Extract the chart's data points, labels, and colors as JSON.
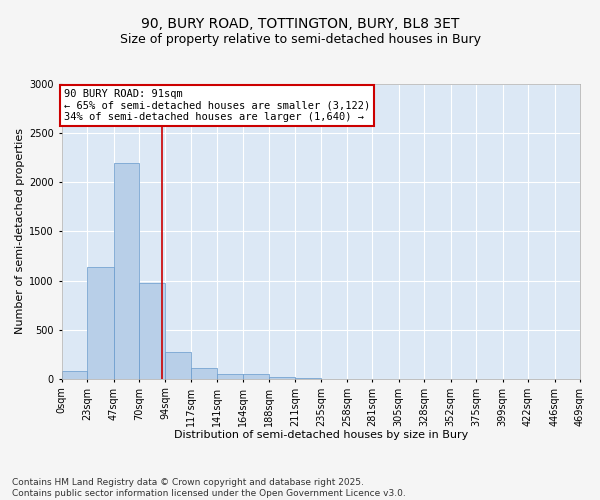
{
  "title_line1": "90, BURY ROAD, TOTTINGTON, BURY, BL8 3ET",
  "title_line2": "Size of property relative to semi-detached houses in Bury",
  "xlabel": "Distribution of semi-detached houses by size in Bury",
  "ylabel": "Number of semi-detached properties",
  "footer_line1": "Contains HM Land Registry data © Crown copyright and database right 2025.",
  "footer_line2": "Contains public sector information licensed under the Open Government Licence v3.0.",
  "annotation_line1": "90 BURY ROAD: 91sqm",
  "annotation_line2": "← 65% of semi-detached houses are smaller (3,122)",
  "annotation_line3": "34% of semi-detached houses are larger (1,640) →",
  "property_size": 91,
  "bin_edges": [
    0,
    23,
    47,
    70,
    94,
    117,
    141,
    164,
    188,
    211,
    235,
    258,
    281,
    305,
    328,
    352,
    375,
    399,
    422,
    446,
    469
  ],
  "bar_values": [
    75,
    1140,
    2200,
    970,
    270,
    110,
    50,
    45,
    20,
    5,
    0,
    0,
    0,
    0,
    0,
    0,
    0,
    0,
    0,
    0
  ],
  "bar_color": "#b8cfe8",
  "bar_edge_color": "#6699cc",
  "vline_color": "#cc0000",
  "vline_x": 91,
  "ylim": [
    0,
    3000
  ],
  "yticks": [
    0,
    500,
    1000,
    1500,
    2000,
    2500,
    3000
  ],
  "plot_bg_color": "#dce8f5",
  "fig_bg_color": "#f5f5f5",
  "grid_color": "#ffffff",
  "title_fontsize": 10,
  "subtitle_fontsize": 9,
  "axis_label_fontsize": 8,
  "tick_fontsize": 7,
  "annotation_fontsize": 7.5,
  "footer_fontsize": 6.5
}
